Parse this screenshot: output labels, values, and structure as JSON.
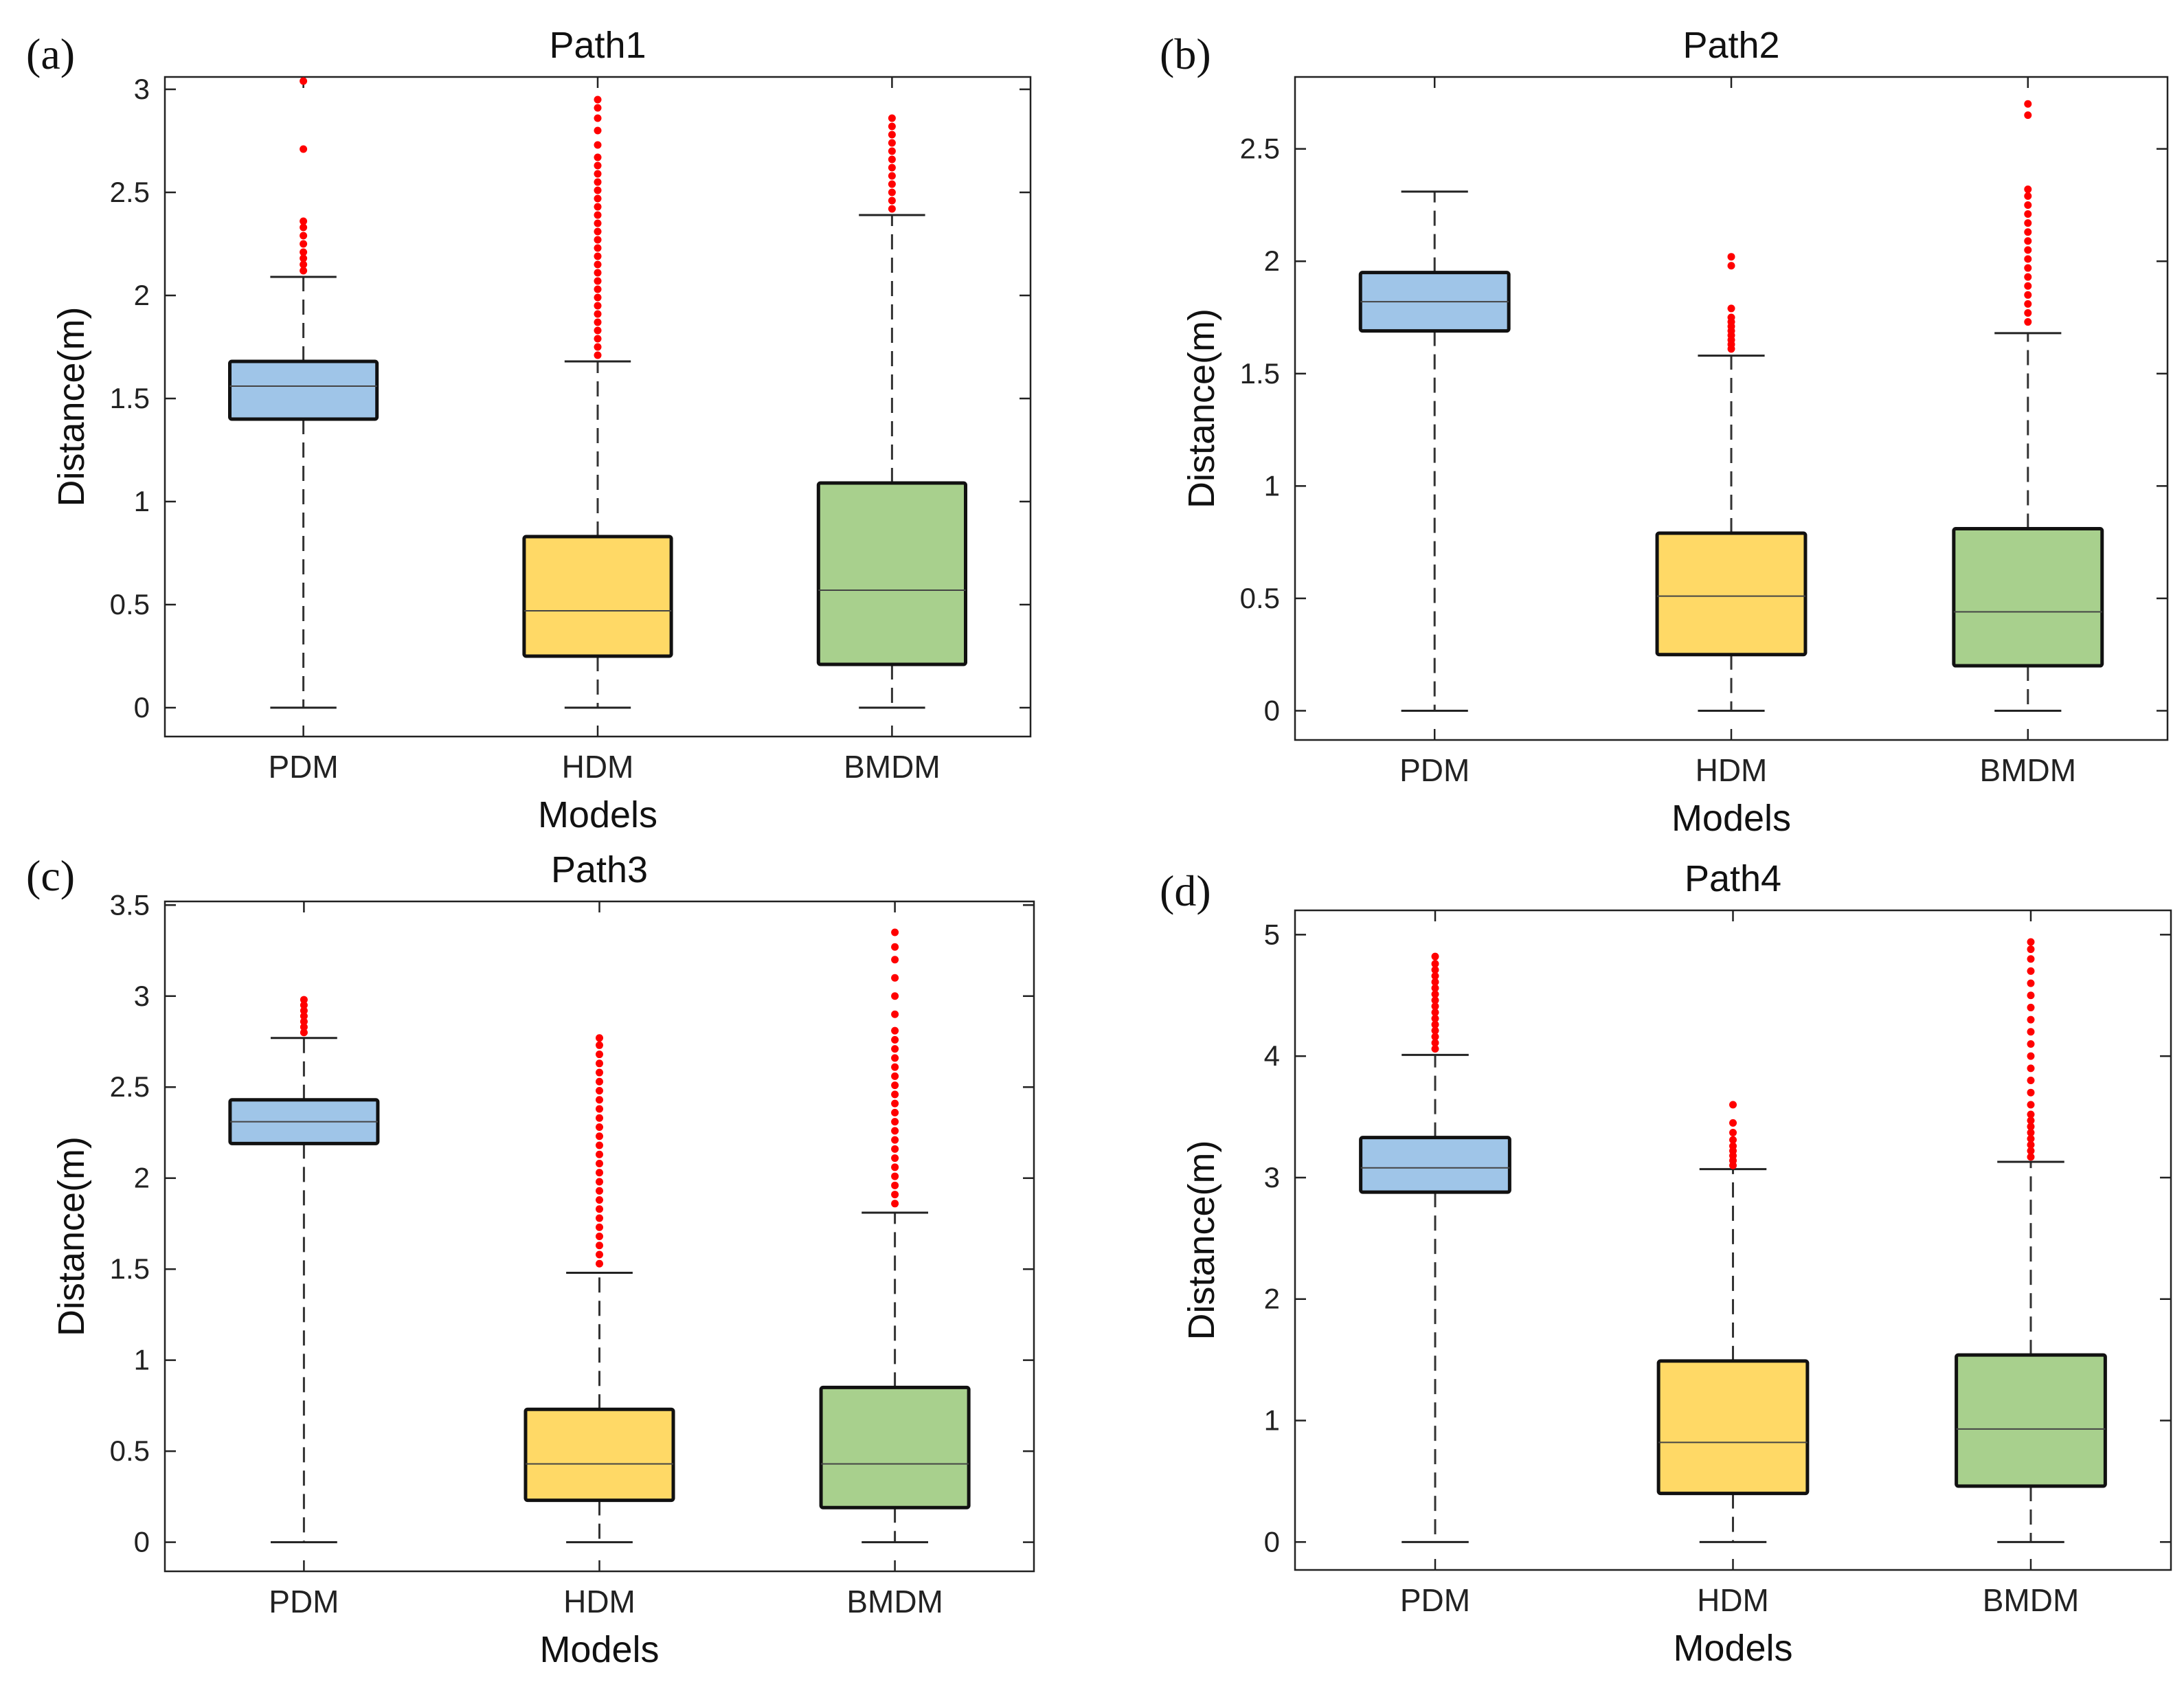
{
  "colors": {
    "PDM": "#9fc5e8",
    "HDM": "#ffd966",
    "BMDM": "#a8d08d",
    "outlier": "#ff0000"
  },
  "chart_data": [
    {
      "type": "box",
      "panel": "(a)",
      "title": "Path1",
      "xlabel": "Models",
      "ylabel": "Distance(m)",
      "ylim": [
        -0.14,
        3.06
      ],
      "yticks": [
        0,
        0.5,
        1,
        1.5,
        2,
        2.5,
        3
      ],
      "categories": [
        "PDM",
        "HDM",
        "BMDM"
      ],
      "boxes": [
        {
          "category": "PDM",
          "whisker_low": 0,
          "q1": 1.4,
          "median": 1.56,
          "q3": 1.68,
          "whisker_high": 2.09,
          "outliers": [
            2.12,
            2.15,
            2.18,
            2.21,
            2.25,
            2.29,
            2.33,
            2.36,
            2.71,
            3.04
          ]
        },
        {
          "category": "HDM",
          "whisker_low": 0,
          "q1": 0.25,
          "median": 0.47,
          "q3": 0.83,
          "whisker_high": 1.68,
          "outliers": [
            1.71,
            1.75,
            1.79,
            1.83,
            1.87,
            1.91,
            1.95,
            1.99,
            2.03,
            2.07,
            2.11,
            2.15,
            2.19,
            2.23,
            2.27,
            2.31,
            2.35,
            2.39,
            2.43,
            2.47,
            2.51,
            2.55,
            2.59,
            2.63,
            2.67,
            2.73,
            2.8,
            2.86,
            2.91,
            2.95
          ]
        },
        {
          "category": "BMDM",
          "whisker_low": 0,
          "q1": 0.21,
          "median": 0.57,
          "q3": 1.09,
          "whisker_high": 2.39,
          "outliers": [
            2.42,
            2.46,
            2.5,
            2.54,
            2.58,
            2.62,
            2.66,
            2.7,
            2.74,
            2.78,
            2.82,
            2.86
          ]
        }
      ]
    },
    {
      "type": "box",
      "panel": "(b)",
      "title": "Path2",
      "xlabel": "Models",
      "ylabel": "Distance(m)",
      "ylim": [
        -0.13,
        2.82
      ],
      "yticks": [
        0,
        0.5,
        1,
        1.5,
        2,
        2.5
      ],
      "categories": [
        "PDM",
        "HDM",
        "BMDM"
      ],
      "boxes": [
        {
          "category": "PDM",
          "whisker_low": 0,
          "q1": 1.69,
          "median": 1.82,
          "q3": 1.95,
          "whisker_high": 2.31,
          "outliers": []
        },
        {
          "category": "HDM",
          "whisker_low": 0,
          "q1": 0.25,
          "median": 0.51,
          "q3": 0.79,
          "whisker_high": 1.58,
          "outliers": [
            1.61,
            1.63,
            1.65,
            1.67,
            1.69,
            1.71,
            1.73,
            1.75,
            1.79,
            1.98,
            2.02
          ]
        },
        {
          "category": "BMDM",
          "whisker_low": 0,
          "q1": 0.2,
          "median": 0.44,
          "q3": 0.81,
          "whisker_high": 1.68,
          "outliers": [
            1.73,
            1.77,
            1.81,
            1.85,
            1.89,
            1.93,
            1.97,
            2.01,
            2.05,
            2.09,
            2.13,
            2.17,
            2.21,
            2.25,
            2.29,
            2.32,
            2.65,
            2.7
          ]
        }
      ]
    },
    {
      "type": "box",
      "panel": "(c)",
      "title": "Path3",
      "xlabel": "Models",
      "ylabel": "Distance(m)",
      "ylim": [
        -0.16,
        3.52
      ],
      "yticks": [
        0,
        0.5,
        1,
        1.5,
        2,
        2.5,
        3,
        3.5
      ],
      "categories": [
        "PDM",
        "HDM",
        "BMDM"
      ],
      "boxes": [
        {
          "category": "PDM",
          "whisker_low": 0,
          "q1": 2.19,
          "median": 2.31,
          "q3": 2.43,
          "whisker_high": 2.77,
          "outliers": [
            2.8,
            2.83,
            2.86,
            2.89,
            2.92,
            2.95,
            2.98
          ]
        },
        {
          "category": "HDM",
          "whisker_low": 0,
          "q1": 0.23,
          "median": 0.43,
          "q3": 0.73,
          "whisker_high": 1.48,
          "outliers": [
            1.53,
            1.58,
            1.63,
            1.68,
            1.73,
            1.78,
            1.83,
            1.88,
            1.93,
            1.98,
            2.03,
            2.08,
            2.13,
            2.18,
            2.23,
            2.28,
            2.33,
            2.38,
            2.43,
            2.48,
            2.53,
            2.58,
            2.63,
            2.68,
            2.73,
            2.77
          ]
        },
        {
          "category": "BMDM",
          "whisker_low": 0,
          "q1": 0.19,
          "median": 0.43,
          "q3": 0.85,
          "whisker_high": 1.81,
          "outliers": [
            1.86,
            1.91,
            1.96,
            2.01,
            2.06,
            2.11,
            2.16,
            2.21,
            2.26,
            2.31,
            2.36,
            2.41,
            2.46,
            2.51,
            2.56,
            2.61,
            2.66,
            2.71,
            2.76,
            2.81,
            2.9,
            3.0,
            3.1,
            3.2,
            3.27,
            3.35
          ]
        }
      ]
    },
    {
      "type": "box",
      "panel": "(d)",
      "title": "Path4",
      "xlabel": "Models",
      "ylabel": "Distance(m)",
      "ylim": [
        -0.23,
        5.2
      ],
      "yticks": [
        0,
        1,
        2,
        3,
        4,
        5
      ],
      "categories": [
        "PDM",
        "HDM",
        "BMDM"
      ],
      "boxes": [
        {
          "category": "PDM",
          "whisker_low": 0,
          "q1": 2.88,
          "median": 3.08,
          "q3": 3.33,
          "whisker_high": 4.01,
          "outliers": [
            4.06,
            4.11,
            4.16,
            4.21,
            4.26,
            4.31,
            4.36,
            4.41,
            4.46,
            4.51,
            4.56,
            4.61,
            4.66,
            4.71,
            4.76,
            4.82
          ]
        },
        {
          "category": "HDM",
          "whisker_low": 0,
          "q1": 0.4,
          "median": 0.82,
          "q3": 1.49,
          "whisker_high": 3.07,
          "outliers": [
            3.1,
            3.14,
            3.18,
            3.22,
            3.26,
            3.31,
            3.37,
            3.45,
            3.6
          ]
        },
        {
          "category": "BMDM",
          "whisker_low": 0,
          "q1": 0.46,
          "median": 0.93,
          "q3": 1.54,
          "whisker_high": 3.13,
          "outliers": [
            3.17,
            3.22,
            3.27,
            3.32,
            3.37,
            3.42,
            3.47,
            3.52,
            3.6,
            3.7,
            3.8,
            3.9,
            4.0,
            4.1,
            4.2,
            4.3,
            4.4,
            4.5,
            4.6,
            4.7,
            4.8,
            4.88,
            4.94
          ]
        }
      ]
    }
  ]
}
